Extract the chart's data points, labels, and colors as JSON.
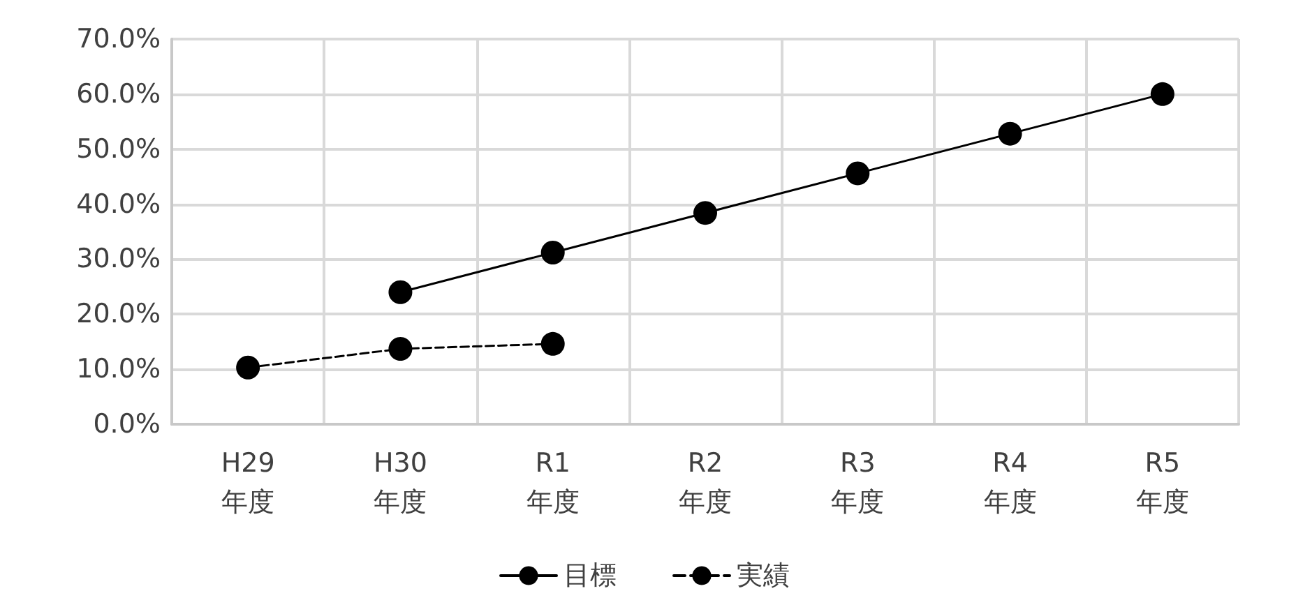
{
  "chart_data": {
    "type": "line",
    "categories": [
      "H29\n年度",
      "H30\n年度",
      "R1\n年度",
      "R2\n年度",
      "R3\n年度",
      "R4\n年度",
      "R5\n年度"
    ],
    "series": [
      {
        "name": "目標",
        "color": "#000000",
        "line_style": "solid",
        "values": [
          null,
          24.0,
          31.2,
          38.4,
          45.6,
          52.8,
          60.0
        ]
      },
      {
        "name": "実績",
        "color": "#000000",
        "line_style": "dashed",
        "values": [
          10.3,
          13.7,
          14.6,
          null,
          null,
          null,
          null
        ]
      }
    ],
    "ylim": [
      0,
      70
    ],
    "yticks": [
      {
        "value": 0,
        "label": "0.0%"
      },
      {
        "value": 10,
        "label": "10.0%"
      },
      {
        "value": 20,
        "label": "20.0%"
      },
      {
        "value": 30,
        "label": "30.0%"
      },
      {
        "value": 40,
        "label": "40.0%"
      },
      {
        "value": 50,
        "label": "50.0%"
      },
      {
        "value": 60,
        "label": "60.0%"
      },
      {
        "value": 70,
        "label": "70.0%"
      }
    ],
    "grid": true,
    "legend": "bottom",
    "marker": "circle"
  }
}
